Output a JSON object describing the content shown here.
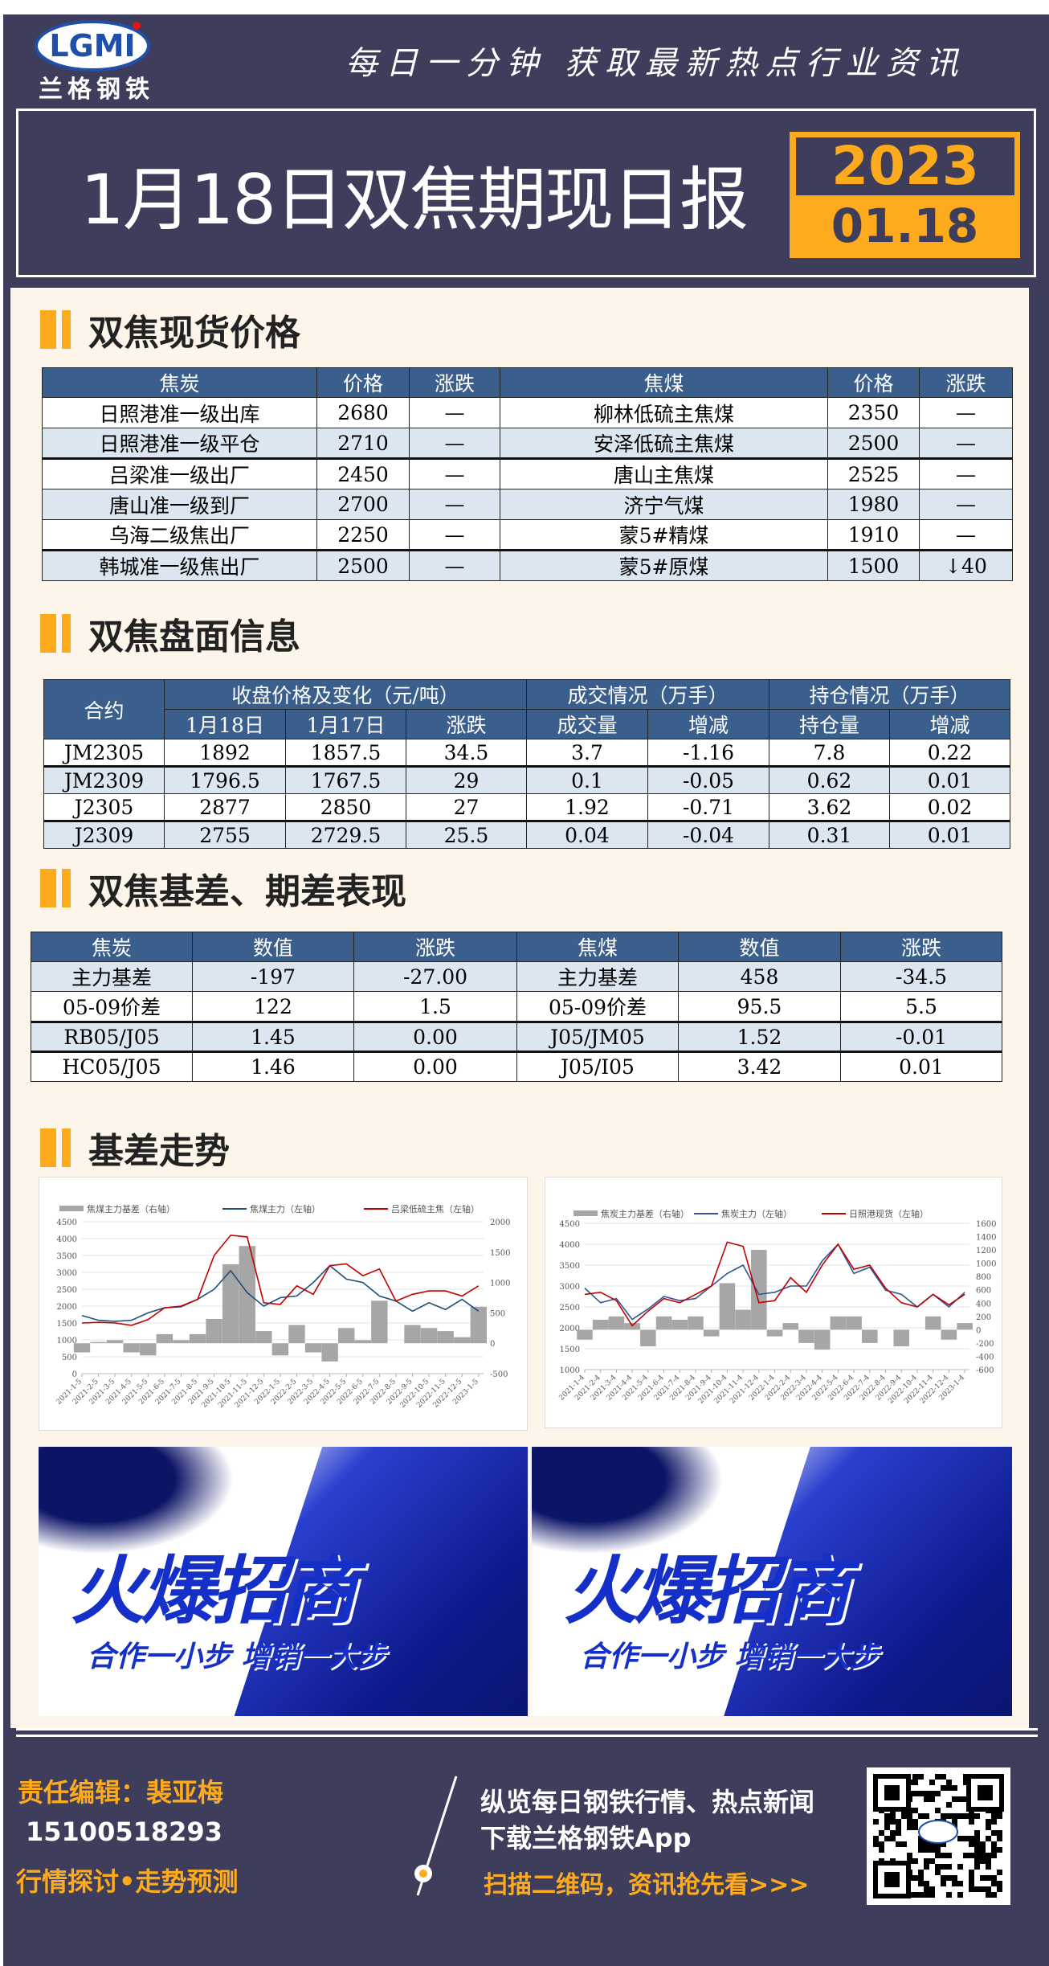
{
  "header": {
    "logo_text": "LGMI",
    "brand": "兰格钢铁",
    "slogan": "每日一分钟  获取最新热点行业资讯",
    "title": "1月18日双焦期现日报",
    "year": "2023",
    "date": "01.18"
  },
  "colors": {
    "dark": "#3e3e5c",
    "accent": "#fdab1d",
    "table_header": "#3a5f8c",
    "row_alt": "#dce6f1",
    "panel": "#fdf5ea"
  },
  "sections": {
    "spot": "双焦现货价格",
    "futures": "双焦盘面信息",
    "basis": "双焦基差、期差表现",
    "trend": "基差走势"
  },
  "spot_table": {
    "headers": [
      "焦炭",
      "价格",
      "涨跌",
      "焦煤",
      "价格",
      "涨跌"
    ],
    "rows": [
      [
        "日照港准一级出库",
        "2680",
        "—",
        "柳林低硫主焦煤",
        "2350",
        "—"
      ],
      [
        "日照港准一级平仓",
        "2710",
        "—",
        "安泽低硫主焦煤",
        "2500",
        "—"
      ],
      [
        "吕梁准一级出厂",
        "2450",
        "—",
        "唐山主焦煤",
        "2525",
        "—"
      ],
      [
        "唐山准一级到厂",
        "2700",
        "—",
        "济宁气煤",
        "1980",
        "—"
      ],
      [
        "乌海二级焦出厂",
        "2250",
        "—",
        "蒙5#精煤",
        "1910",
        "—"
      ],
      [
        "韩城准一级焦出厂",
        "2500",
        "—",
        "蒙5#原煤",
        "1500",
        "↓40"
      ]
    ]
  },
  "futures_table": {
    "contract": "合约",
    "group1": "收盘价格及变化（元/吨）",
    "group2": "成交情况（万手）",
    "group3": "持仓情况（万手）",
    "sub": [
      "1月18日",
      "1月17日",
      "涨跌",
      "成交量",
      "增减",
      "持仓量",
      "增减"
    ],
    "rows": [
      [
        "JM2305",
        "1892",
        "1857.5",
        "34.5",
        "3.7",
        "-1.16",
        "7.8",
        "0.22"
      ],
      [
        "JM2309",
        "1796.5",
        "1767.5",
        "29",
        "0.1",
        "-0.05",
        "0.62",
        "0.01"
      ],
      [
        "J2305",
        "2877",
        "2850",
        "27",
        "1.92",
        "-0.71",
        "3.62",
        "0.02"
      ],
      [
        "J2309",
        "2755",
        "2729.5",
        "25.5",
        "0.04",
        "-0.04",
        "0.31",
        "0.01"
      ]
    ]
  },
  "basis_table": {
    "headers": [
      "焦炭",
      "数值",
      "涨跌",
      "焦煤",
      "数值",
      "涨跌"
    ],
    "rows": [
      [
        "主力基差",
        "-197",
        "-27.00",
        "主力基差",
        "458",
        "-34.5"
      ],
      [
        "05-09价差",
        "122",
        "1.5",
        "05-09价差",
        "95.5",
        "5.5"
      ],
      [
        "RB05/J05",
        "1.45",
        "0.00",
        "J05/JM05",
        "1.52",
        "-0.01"
      ],
      [
        "HC05/J05",
        "1.46",
        "0.00",
        "J05/I05",
        "3.42",
        "0.01"
      ]
    ]
  },
  "chart_data": [
    {
      "type": "line",
      "x": [
        "2021-1-5",
        "2021-2-5",
        "2021-3-5",
        "2021-4-5",
        "2021-5-5",
        "2021-6-5",
        "2021-7-5",
        "2021-8-5",
        "2021-9-5",
        "2021-10-5",
        "2021-11-5",
        "2021-12-5",
        "2022-1-5",
        "2022-2-5",
        "2022-3-5",
        "2022-4-5",
        "2022-5-5",
        "2022-6-5",
        "2022-7-5",
        "2022-8-5",
        "2022-9-5",
        "2022-10-5",
        "2022-11-5",
        "2022-12-5",
        "2023-1-5"
      ],
      "left_ylim": [
        0,
        4500
      ],
      "left_ticks": [
        "0",
        "500",
        "1000",
        "1500",
        "2000",
        "2500",
        "3000",
        "3500",
        "4000",
        "4500"
      ],
      "right_ylim": [
        -500,
        2000
      ],
      "right_ticks": [
        "-500",
        "0",
        "500",
        "1000",
        "1500",
        "2000"
      ],
      "legend_position": "top",
      "grid": true,
      "series": [
        {
          "name": "焦煤主力基差（右轴）",
          "kind": "area",
          "axis": "right",
          "color": "#a6a6a6",
          "values": [
            -150,
            20,
            50,
            -150,
            -200,
            150,
            50,
            150,
            400,
            1300,
            1600,
            200,
            -200,
            300,
            -150,
            -300,
            250,
            50,
            700,
            0,
            300,
            250,
            200,
            100,
            600
          ]
        },
        {
          "name": "焦煤主力（左轴）",
          "kind": "line",
          "axis": "left",
          "color": "#1f4e79",
          "values": [
            1720,
            1580,
            1550,
            1580,
            1800,
            1950,
            1980,
            2200,
            2500,
            3050,
            2400,
            2000,
            2250,
            2300,
            2700,
            3200,
            2800,
            2700,
            2300,
            2150,
            1850,
            2100,
            1900,
            2200,
            1850
          ]
        },
        {
          "name": "吕梁低硫主焦（左轴）",
          "kind": "line",
          "axis": "left",
          "color": "#c00000",
          "values": [
            1500,
            1520,
            1500,
            1430,
            1600,
            1950,
            2000,
            2200,
            3500,
            4100,
            4050,
            2100,
            2050,
            2600,
            2350,
            3200,
            3250,
            2900,
            3100,
            2150,
            2350,
            2450,
            2450,
            2300,
            2600
          ]
        }
      ]
    },
    {
      "type": "line",
      "x": [
        "2021-1-4",
        "2021-2-4",
        "2021-3-4",
        "2021-4-4",
        "2021-5-4",
        "2021-6-4",
        "2021-7-4",
        "2021-8-4",
        "2021-9-4",
        "2021-10-4",
        "2021-11-4",
        "2021-12-4",
        "2022-1-4",
        "2022-2-4",
        "2022-3-4",
        "2022-4-4",
        "2022-5-4",
        "2022-6-4",
        "2022-7-4",
        "2022-8-4",
        "2022-9-4",
        "2022-10-4",
        "2022-11-4",
        "2022-12-4",
        "2023-1-4"
      ],
      "left_ylim": [
        1000,
        4500
      ],
      "left_ticks": [
        "1000",
        "1500",
        "2000",
        "2500",
        "3000",
        "3500",
        "4000",
        "4500"
      ],
      "right_ylim": [
        -600,
        1600
      ],
      "right_ticks": [
        "-600",
        "-400",
        "-200",
        "0",
        "200",
        "400",
        "600",
        "800",
        "1000",
        "1200",
        "1400",
        "1600"
      ],
      "legend_position": "top",
      "grid": true,
      "series": [
        {
          "name": "焦炭主力基差（右轴）",
          "kind": "area",
          "axis": "right",
          "color": "#a6a6a6",
          "values": [
            -150,
            150,
            200,
            100,
            -250,
            200,
            150,
            200,
            -100,
            700,
            300,
            1200,
            -100,
            100,
            -200,
            -300,
            200,
            200,
            -200,
            0,
            -250,
            0,
            200,
            -150,
            100
          ]
        },
        {
          "name": "焦炭主力（左轴）",
          "kind": "line",
          "axis": "left",
          "color": "#2f5597",
          "values": [
            2950,
            2600,
            2700,
            2200,
            2450,
            2750,
            2650,
            2700,
            3000,
            3300,
            3500,
            2800,
            2850,
            3000,
            3000,
            3600,
            4000,
            3300,
            3450,
            2900,
            2800,
            2500,
            2800,
            2500,
            2850
          ]
        },
        {
          "name": "日照港现货（左轴）",
          "kind": "line",
          "axis": "left",
          "color": "#c00000",
          "values": [
            2800,
            2850,
            2650,
            2050,
            2400,
            2700,
            2600,
            2800,
            3000,
            4050,
            3950,
            2600,
            2650,
            3200,
            2850,
            3500,
            4000,
            3400,
            3500,
            2950,
            2600,
            2500,
            2800,
            2550,
            2800
          ]
        }
      ]
    }
  ],
  "banners": [
    {
      "headline": "火爆招商",
      "tagline": "合作一小步  增销一大步"
    },
    {
      "headline": "火爆招商",
      "tagline": "合作一小步  增销一大步"
    }
  ],
  "footer": {
    "editor": "责任编辑：裴亚梅",
    "phone": "15100518293",
    "tagline": "行情探讨•走势预测",
    "promo_line1": "纵览每日钢铁行情、热点新闻",
    "promo_line2": "下载兰格钢铁App",
    "cta": "扫描二维码，资讯抢先看>>>"
  }
}
